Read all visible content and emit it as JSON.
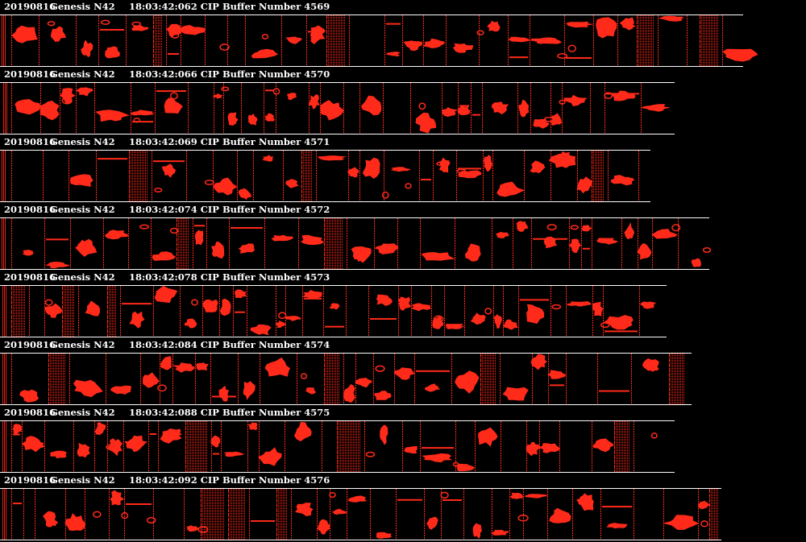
{
  "colors": {
    "background": "#000000",
    "particle": "#ff2a1a",
    "separator": "#ffffff",
    "header_text": "#ffffff"
  },
  "strips": [
    {
      "date": "20190816",
      "probe": "Genesis N42",
      "time": "18:03:42:062",
      "label": "CIP Buffer Number",
      "buffer": "4569"
    },
    {
      "date": "20190816",
      "probe": "Genesis N42",
      "time": "18:03:42:066",
      "label": "CIP Buffer Number",
      "buffer": "4570"
    },
    {
      "date": "20190816",
      "probe": "Genesis N42",
      "time": "18:03:42:069",
      "label": "CIP Buffer Number",
      "buffer": "4571"
    },
    {
      "date": "20190816",
      "probe": "Genesis N42",
      "time": "18:03:42:074",
      "label": "CIP Buffer Number",
      "buffer": "4572"
    },
    {
      "date": "20190816",
      "probe": "Genesis N42",
      "time": "18:03:42:078",
      "label": "CIP Buffer Number",
      "buffer": "4573"
    },
    {
      "date": "20190816",
      "probe": "Genesis N42",
      "time": "18:03:42:084",
      "label": "CIP Buffer Number",
      "buffer": "4574"
    },
    {
      "date": "20190816",
      "probe": "Genesis N42",
      "time": "18:03:42:088",
      "label": "CIP Buffer Number",
      "buffer": "4575"
    },
    {
      "date": "20190816",
      "probe": "Genesis N42",
      "time": "18:03:42:092",
      "label": "CIP Buffer Number",
      "buffer": "4576"
    }
  ]
}
